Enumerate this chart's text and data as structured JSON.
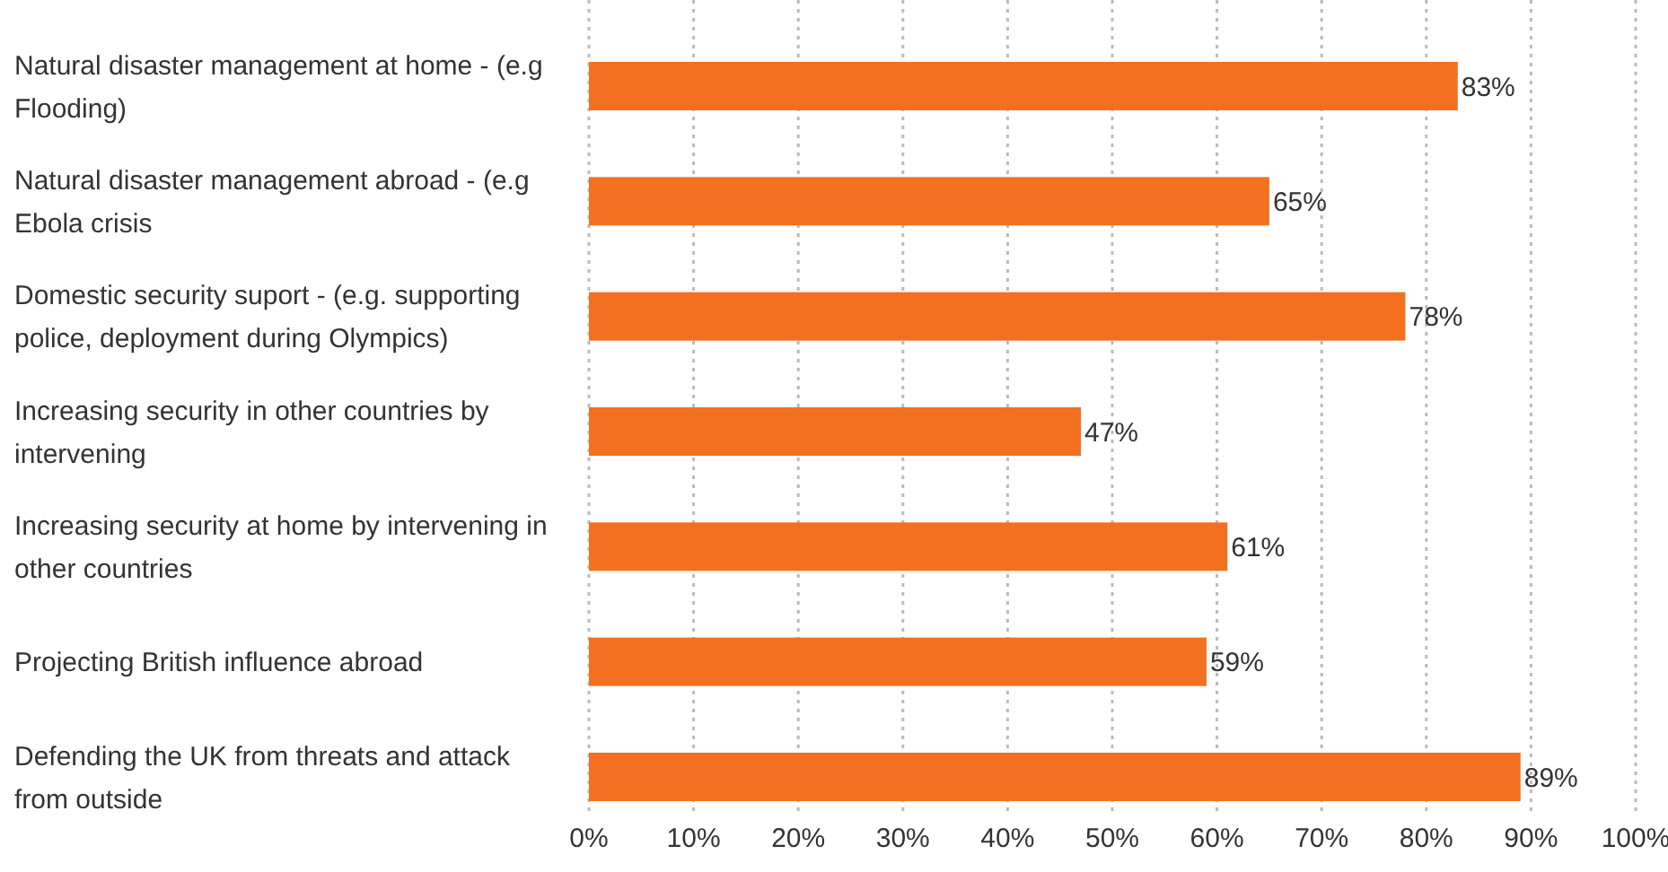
{
  "chart_data": {
    "type": "bar",
    "orientation": "horizontal",
    "categories": [
      "Natural disaster management at home - (e.g Flooding)",
      "Natural disaster management abroad - (e.g Ebola crisis",
      "Domestic security suport - (e.g. supporting police, deployment during Olympics)",
      "Increasing security in other countries by intervening",
      "Increasing security at home by intervening in other countries",
      "Projecting British influence abroad",
      "Defending the UK from threats and attack from outside"
    ],
    "values": [
      83,
      65,
      78,
      47,
      61,
      59,
      89
    ],
    "value_labels": [
      "83%",
      "65%",
      "78%",
      "47%",
      "61%",
      "59%",
      "89%"
    ],
    "color": "#f37021",
    "xlim": [
      0,
      100
    ],
    "xticks": [
      {
        "value": 0,
        "label": "0%"
      },
      {
        "value": 10,
        "label": "10%"
      },
      {
        "value": 20,
        "label": "20%"
      },
      {
        "value": 30,
        "label": "30%"
      },
      {
        "value": 40,
        "label": "40%"
      },
      {
        "value": 50,
        "label": "50%"
      },
      {
        "value": 60,
        "label": "60%"
      },
      {
        "value": 70,
        "label": "70%"
      },
      {
        "value": 80,
        "label": "80%"
      },
      {
        "value": 90,
        "label": "90%"
      },
      {
        "value": 100,
        "label": "100%"
      }
    ],
    "grid": "x"
  }
}
